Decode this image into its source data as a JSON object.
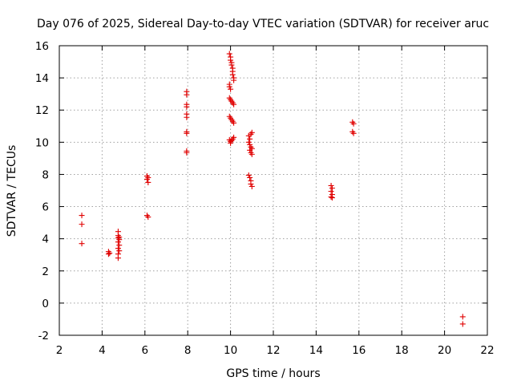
{
  "chart_data": {
    "type": "scatter",
    "title": "Day 076 of 2025, Sidereal Day-to-day VTEC variation (SDTVAR) for receiver aruc",
    "xlabel": "GPS time / hours",
    "ylabel": "SDTVAR / TECUs",
    "xlim": [
      2,
      22
    ],
    "ylim": [
      -2,
      16
    ],
    "xticks": [
      2,
      4,
      6,
      8,
      10,
      12,
      14,
      16,
      18,
      20,
      22
    ],
    "yticks": [
      -2,
      0,
      2,
      4,
      6,
      8,
      10,
      12,
      14,
      16
    ],
    "grid": true,
    "marker_color": "#e00000",
    "series": [
      {
        "name": "SDTVAR",
        "points": [
          [
            3.05,
            5.45
          ],
          [
            3.05,
            4.9
          ],
          [
            3.05,
            3.7
          ],
          [
            4.3,
            3.2
          ],
          [
            4.3,
            3.05
          ],
          [
            4.35,
            3.1
          ],
          [
            4.75,
            4.45
          ],
          [
            4.75,
            4.2
          ],
          [
            4.75,
            4.05
          ],
          [
            4.8,
            3.95
          ],
          [
            4.75,
            3.8
          ],
          [
            4.8,
            3.6
          ],
          [
            4.75,
            3.4
          ],
          [
            4.8,
            3.25
          ],
          [
            4.75,
            3.05
          ],
          [
            4.75,
            2.8
          ],
          [
            4.8,
            4.1
          ],
          [
            6.1,
            7.9
          ],
          [
            6.15,
            7.8
          ],
          [
            6.1,
            7.7
          ],
          [
            6.15,
            7.5
          ],
          [
            6.1,
            5.45
          ],
          [
            6.15,
            5.35
          ],
          [
            7.95,
            13.15
          ],
          [
            7.95,
            12.95
          ],
          [
            7.95,
            12.35
          ],
          [
            7.95,
            12.2
          ],
          [
            7.95,
            11.75
          ],
          [
            7.95,
            11.55
          ],
          [
            7.95,
            10.65
          ],
          [
            7.95,
            10.55
          ],
          [
            7.95,
            9.45
          ],
          [
            7.95,
            9.35
          ],
          [
            9.95,
            15.5
          ],
          [
            10.0,
            15.3
          ],
          [
            10.0,
            15.1
          ],
          [
            10.05,
            14.95
          ],
          [
            10.05,
            14.8
          ],
          [
            10.1,
            14.6
          ],
          [
            10.1,
            14.4
          ],
          [
            10.1,
            14.2
          ],
          [
            10.15,
            14.0
          ],
          [
            10.15,
            13.85
          ],
          [
            9.95,
            13.6
          ],
          [
            9.95,
            13.45
          ],
          [
            10.0,
            13.3
          ],
          [
            9.95,
            12.75
          ],
          [
            10.0,
            12.65
          ],
          [
            10.05,
            12.55
          ],
          [
            10.1,
            12.45
          ],
          [
            10.15,
            12.35
          ],
          [
            9.95,
            11.6
          ],
          [
            10.0,
            11.5
          ],
          [
            10.05,
            11.4
          ],
          [
            10.1,
            11.3
          ],
          [
            10.15,
            11.2
          ],
          [
            9.95,
            10.15
          ],
          [
            10.0,
            10.05
          ],
          [
            10.05,
            10.1
          ],
          [
            10.1,
            10.2
          ],
          [
            10.15,
            10.3
          ],
          [
            10.0,
            9.95
          ],
          [
            10.85,
            10.4
          ],
          [
            10.9,
            10.2
          ],
          [
            10.95,
            10.5
          ],
          [
            11.0,
            10.6
          ],
          [
            10.85,
            10.0
          ],
          [
            10.9,
            9.85
          ],
          [
            10.95,
            9.7
          ],
          [
            11.0,
            9.6
          ],
          [
            10.9,
            9.5
          ],
          [
            10.95,
            9.35
          ],
          [
            11.0,
            9.25
          ],
          [
            10.85,
            7.95
          ],
          [
            10.9,
            7.8
          ],
          [
            10.95,
            7.6
          ],
          [
            10.95,
            7.4
          ],
          [
            11.0,
            7.25
          ],
          [
            14.7,
            7.3
          ],
          [
            14.75,
            7.15
          ],
          [
            14.7,
            6.95
          ],
          [
            14.75,
            6.75
          ],
          [
            14.7,
            6.6
          ],
          [
            14.75,
            6.55
          ],
          [
            15.7,
            11.25
          ],
          [
            15.75,
            11.15
          ],
          [
            15.7,
            10.65
          ],
          [
            15.75,
            10.55
          ],
          [
            20.85,
            -0.85
          ],
          [
            20.85,
            -1.3
          ]
        ]
      }
    ]
  }
}
